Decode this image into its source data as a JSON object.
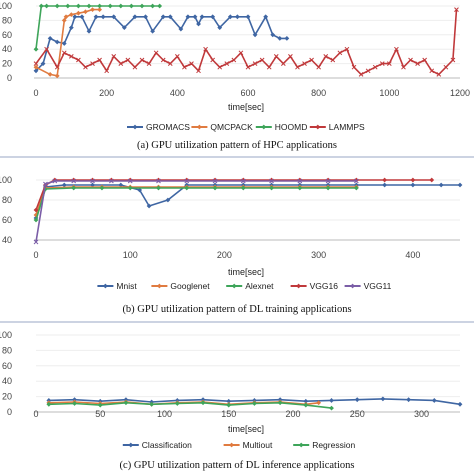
{
  "chart_data": [
    {
      "type": "line",
      "caption": "(a) GPU utilization pattern of HPC applications",
      "xlabel": "time[sec]",
      "ylabel": "",
      "xlim": [
        0,
        1200
      ],
      "ylim": [
        0,
        100
      ],
      "xticks": [
        0,
        200,
        400,
        600,
        800,
        1000,
        1200
      ],
      "xtick_labels": [
        "0",
        "200",
        "400",
        "600",
        "800",
        "1000",
        "1200"
      ],
      "yticks": [
        0,
        20,
        40,
        60,
        80,
        100
      ],
      "ytick_labels": [
        "0",
        "20",
        "40",
        "60",
        "80",
        "100"
      ],
      "legend": "bottom",
      "series": [
        {
          "name": "GROMACS",
          "color": "#3f66a3",
          "marker": "diamond",
          "x": [
            0,
            20,
            40,
            60,
            80,
            100,
            110,
            130,
            150,
            170,
            190,
            220,
            250,
            280,
            310,
            330,
            360,
            380,
            410,
            430,
            450,
            460,
            470,
            500,
            520,
            550,
            570,
            600,
            620,
            650,
            670,
            690,
            710
          ],
          "y": [
            10,
            20,
            55,
            50,
            48,
            70,
            85,
            85,
            65,
            85,
            85,
            85,
            70,
            85,
            85,
            65,
            85,
            85,
            68,
            85,
            85,
            75,
            85,
            85,
            70,
            85,
            85,
            85,
            60,
            85,
            60,
            55,
            55
          ]
        },
        {
          "name": "QMCPACK",
          "color": "#e07b40",
          "marker": "diamond",
          "x": [
            0,
            40,
            60,
            80,
            85,
            100,
            120,
            140,
            160,
            180
          ],
          "y": [
            15,
            5,
            3,
            80,
            85,
            88,
            90,
            92,
            95,
            95
          ]
        },
        {
          "name": "HOOMD",
          "color": "#3ea55a",
          "marker": "diamond",
          "x": [
            0,
            15,
            30,
            60,
            90,
            120,
            150,
            180,
            210,
            240,
            270,
            300,
            330,
            350
          ],
          "y": [
            40,
            100,
            100,
            100,
            100,
            100,
            100,
            100,
            100,
            100,
            100,
            100,
            100,
            100
          ]
        },
        {
          "name": "LAMMPS",
          "color": "#c0393b",
          "marker": "x",
          "x": [
            0,
            30,
            60,
            80,
            100,
            120,
            140,
            160,
            180,
            200,
            220,
            240,
            260,
            280,
            300,
            320,
            340,
            360,
            380,
            400,
            420,
            440,
            460,
            480,
            500,
            520,
            540,
            560,
            580,
            600,
            620,
            640,
            660,
            680,
            700,
            720,
            740,
            760,
            780,
            800,
            820,
            840,
            860,
            880,
            900,
            920,
            940,
            960,
            980,
            1000,
            1020,
            1040,
            1060,
            1080,
            1100,
            1120,
            1140,
            1160,
            1180,
            1190
          ],
          "y": [
            20,
            40,
            15,
            35,
            30,
            25,
            15,
            20,
            25,
            10,
            30,
            20,
            25,
            15,
            25,
            20,
            35,
            25,
            20,
            30,
            15,
            20,
            10,
            40,
            25,
            15,
            20,
            25,
            35,
            15,
            20,
            25,
            15,
            30,
            20,
            30,
            15,
            20,
            25,
            15,
            30,
            25,
            35,
            40,
            15,
            5,
            10,
            15,
            20,
            20,
            40,
            15,
            25,
            20,
            25,
            10,
            5,
            15,
            25,
            95
          ]
        }
      ]
    },
    {
      "type": "line",
      "caption": "(b) GPU utilization pattern of DL training applications",
      "xlabel": "time[sec]",
      "ylabel": "",
      "xlim": [
        0,
        450
      ],
      "ylim": [
        40,
        100
      ],
      "xticks": [
        0,
        100,
        200,
        300,
        400
      ],
      "xtick_labels": [
        "0",
        "100",
        "200",
        "300",
        "400"
      ],
      "yticks": [
        40,
        60,
        80,
        100
      ],
      "ytick_labels": [
        "40",
        "60",
        "80",
        "100"
      ],
      "legend": "bottom",
      "series": [
        {
          "name": "Mnist",
          "color": "#3f66a3",
          "marker": "diamond",
          "x": [
            0,
            10,
            30,
            60,
            90,
            110,
            120,
            140,
            160,
            190,
            220,
            250,
            280,
            310,
            340,
            370,
            400,
            430,
            450
          ],
          "y": [
            62,
            93,
            95,
            95,
            95,
            90,
            74,
            80,
            95,
            95,
            95,
            95,
            95,
            95,
            95,
            95,
            95,
            95,
            95
          ]
        },
        {
          "name": "Googlenet",
          "color": "#e07b40",
          "marker": "diamond",
          "x": [
            0,
            10,
            40,
            70,
            100,
            130,
            160,
            190,
            220,
            250,
            280,
            310,
            340
          ],
          "y": [
            65,
            92,
            93,
            93,
            93,
            93,
            93,
            93,
            93,
            93,
            93,
            93,
            93
          ]
        },
        {
          "name": "Alexnet",
          "color": "#3ea55a",
          "marker": "diamond",
          "x": [
            0,
            10,
            40,
            70,
            100,
            130,
            160,
            190,
            220,
            250,
            280,
            310,
            340
          ],
          "y": [
            60,
            91,
            92,
            92,
            92,
            92,
            92,
            92,
            92,
            92,
            92,
            92,
            92
          ]
        },
        {
          "name": "VGG16",
          "color": "#c0393b",
          "marker": "diamond",
          "x": [
            0,
            10,
            20,
            40,
            60,
            80,
            100,
            130,
            160,
            190,
            220,
            250,
            280,
            310,
            340,
            370,
            400,
            420
          ],
          "y": [
            70,
            95,
            100,
            100,
            100,
            100,
            100,
            100,
            100,
            100,
            100,
            100,
            100,
            100,
            100,
            100,
            100,
            100
          ]
        },
        {
          "name": "VGG11",
          "color": "#7b5ea7",
          "marker": "x",
          "x": [
            0,
            10,
            20,
            40,
            60,
            80,
            100,
            130,
            160,
            190,
            220,
            250,
            280,
            310,
            340
          ],
          "y": [
            38,
            96,
            99,
            99,
            99,
            99,
            99,
            99,
            99,
            99,
            99,
            99,
            99,
            99,
            99
          ]
        }
      ]
    },
    {
      "type": "line",
      "caption": "(c) GPU utilization pattern of DL inference applications",
      "xlabel": "time[sec]",
      "ylabel": "",
      "xlim": [
        0,
        330
      ],
      "ylim": [
        0,
        100
      ],
      "xticks": [
        0,
        50,
        100,
        150,
        200,
        250,
        300
      ],
      "xtick_labels": [
        "0",
        "50",
        "100",
        "150",
        "200",
        "250",
        "300"
      ],
      "yticks": [
        0,
        20,
        40,
        60,
        80,
        100
      ],
      "ytick_labels": [
        "0",
        "20",
        "40",
        "60",
        "80",
        "100"
      ],
      "legend": "bottom",
      "series": [
        {
          "name": "Classification",
          "color": "#3f66a3",
          "marker": "diamond",
          "x": [
            10,
            30,
            50,
            70,
            90,
            110,
            130,
            150,
            170,
            190,
            210,
            230,
            250,
            270,
            290,
            310,
            330
          ],
          "y": [
            15,
            16,
            14,
            16,
            13,
            15,
            16,
            14,
            15,
            16,
            14,
            15,
            16,
            17,
            16,
            15,
            10
          ]
        },
        {
          "name": "Multiout",
          "color": "#e07b40",
          "marker": "diamond",
          "x": [
            10,
            30,
            50,
            70,
            90,
            110,
            130,
            150,
            170,
            190,
            210,
            220
          ],
          "y": [
            12,
            13,
            11,
            13,
            10,
            12,
            13,
            10,
            12,
            13,
            10,
            12
          ]
        },
        {
          "name": "Regression",
          "color": "#3ea55a",
          "marker": "diamond",
          "x": [
            10,
            30,
            50,
            70,
            90,
            110,
            130,
            150,
            170,
            190,
            210,
            230
          ],
          "y": [
            10,
            11,
            9,
            12,
            10,
            11,
            12,
            9,
            11,
            12,
            9,
            5
          ]
        }
      ]
    }
  ]
}
